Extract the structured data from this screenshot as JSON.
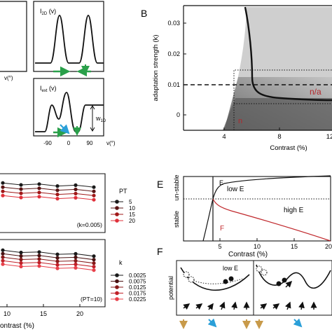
{
  "panels": {
    "A": {
      "top_label": "I",
      "top_sub": "2D",
      "top_paren": " (v)",
      "bottom_label": "I",
      "bottom_sub": "ext",
      "bottom_paren": " (v)",
      "w_label": "w",
      "w_sub": "1D",
      "x_ticks": [
        "-90",
        "0",
        "90"
      ],
      "x_unit": "v(°)",
      "left_x_unit": "v(°)"
    },
    "B": {
      "letter": "B",
      "ylabel": "adaptation strength (k)",
      "xlabel": "Contrast (%)",
      "x_ticks": [
        "4",
        "8",
        "12"
      ],
      "y_ticks": [
        "0",
        "0.01",
        "0.02",
        "0.03"
      ],
      "region_labels": [
        "n/a",
        "n"
      ]
    },
    "C": {
      "legend1_title": "PT",
      "legend1_items": [
        "5",
        "10",
        "15",
        "20"
      ],
      "legend1_colors": [
        "#1a1a1a",
        "#5a1414",
        "#a01818",
        "#e0303a"
      ],
      "note1": "(k=0.005)",
      "legend2_title": "k",
      "legend2_items": [
        "0.0025",
        "0.0075",
        "0.0125",
        "0.0175",
        "0.0225"
      ],
      "legend2_colors": [
        "#1a1a1a",
        "#4a1212",
        "#861818",
        "#c02028",
        "#e8404a"
      ],
      "note2": "(PT=10)",
      "x_ticks": [
        "10",
        "15",
        "20"
      ],
      "xlabel": "ontrast (%)"
    },
    "E": {
      "letter": "E",
      "ylabel_top": "un-stable",
      "ylabel_bottom": "stable",
      "xlabel": "Contrast (%)",
      "x_ticks": [
        "5",
        "10",
        "15",
        "20"
      ],
      "curve_E": "E",
      "curve_F": "F",
      "low_label": "low E",
      "high_label": "high E"
    },
    "F": {
      "letter": "F",
      "ylabel": "potential",
      "low_label": "low E"
    }
  }
}
